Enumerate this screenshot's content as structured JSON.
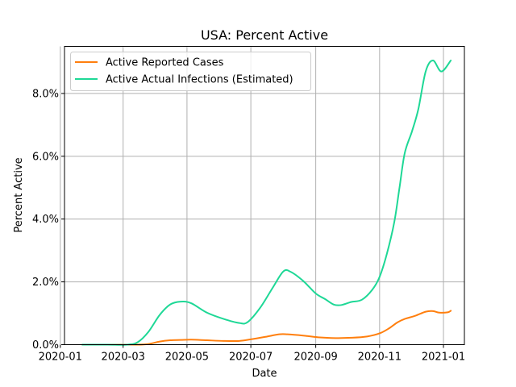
{
  "chart_data": {
    "type": "line",
    "title": "USA: Percent Active",
    "xlabel": "Date",
    "ylabel": "Percent Active",
    "grid": true,
    "legend_position": "top-left",
    "x_range": [
      "2020-01-05",
      "2021-01-21"
    ],
    "ylim": [
      0,
      0.095
    ],
    "x_ticks": [
      {
        "date": "2020-01-01",
        "label": "2020-01"
      },
      {
        "date": "2020-03-01",
        "label": "2020-03"
      },
      {
        "date": "2020-05-01",
        "label": "2020-05"
      },
      {
        "date": "2020-07-01",
        "label": "2020-07"
      },
      {
        "date": "2020-09-01",
        "label": "2020-09"
      },
      {
        "date": "2020-11-01",
        "label": "2020-11"
      },
      {
        "date": "2021-01-01",
        "label": "2021-01"
      }
    ],
    "y_ticks": [
      {
        "value": 0.0,
        "label": "0.0%"
      },
      {
        "value": 0.02,
        "label": "2.0%"
      },
      {
        "value": 0.04,
        "label": "4.0%"
      },
      {
        "value": 0.06,
        "label": "6.0%"
      },
      {
        "value": 0.08,
        "label": "8.0%"
      }
    ],
    "series": [
      {
        "name": "Active Reported Cases",
        "color": "#ff7f0e",
        "points": [
          [
            "2020-01-22",
            0.0
          ],
          [
            "2020-02-15",
            0.0
          ],
          [
            "2020-03-15",
            0.0
          ],
          [
            "2020-03-25",
            0.0002
          ],
          [
            "2020-04-05",
            0.001
          ],
          [
            "2020-04-15",
            0.0014
          ],
          [
            "2020-04-25",
            0.0015
          ],
          [
            "2020-05-05",
            0.0016
          ],
          [
            "2020-05-20",
            0.0014
          ],
          [
            "2020-06-05",
            0.0012
          ],
          [
            "2020-06-20",
            0.0012
          ],
          [
            "2020-07-01",
            0.0017
          ],
          [
            "2020-07-15",
            0.0025
          ],
          [
            "2020-07-28",
            0.0033
          ],
          [
            "2020-08-05",
            0.0033
          ],
          [
            "2020-08-20",
            0.0029
          ],
          [
            "2020-09-05",
            0.0023
          ],
          [
            "2020-09-20",
            0.0021
          ],
          [
            "2020-10-05",
            0.0022
          ],
          [
            "2020-10-20",
            0.0026
          ],
          [
            "2020-11-01",
            0.0036
          ],
          [
            "2020-11-10",
            0.0052
          ],
          [
            "2020-11-18",
            0.0071
          ],
          [
            "2020-11-25",
            0.0082
          ],
          [
            "2020-12-05",
            0.0092
          ],
          [
            "2020-12-15",
            0.0105
          ],
          [
            "2020-12-22",
            0.0107
          ],
          [
            "2020-12-28",
            0.0102
          ],
          [
            "2021-01-05",
            0.0103
          ],
          [
            "2021-01-08",
            0.0108
          ]
        ]
      },
      {
        "name": "Active Actual Infections (Estimated)",
        "color": "#1ed896",
        "points": [
          [
            "2020-01-22",
            0.0
          ],
          [
            "2020-02-15",
            0.0
          ],
          [
            "2020-03-05",
            0.0
          ],
          [
            "2020-03-15",
            0.0008
          ],
          [
            "2020-03-25",
            0.004
          ],
          [
            "2020-04-05",
            0.0095
          ],
          [
            "2020-04-15",
            0.0128
          ],
          [
            "2020-04-25",
            0.0137
          ],
          [
            "2020-05-05",
            0.0132
          ],
          [
            "2020-05-20",
            0.0102
          ],
          [
            "2020-06-05",
            0.0082
          ],
          [
            "2020-06-20",
            0.0069
          ],
          [
            "2020-06-28",
            0.0072
          ],
          [
            "2020-07-10",
            0.0118
          ],
          [
            "2020-07-22",
            0.0182
          ],
          [
            "2020-08-01",
            0.0233
          ],
          [
            "2020-08-08",
            0.0232
          ],
          [
            "2020-08-20",
            0.0203
          ],
          [
            "2020-09-01",
            0.0163
          ],
          [
            "2020-09-10",
            0.0145
          ],
          [
            "2020-09-18",
            0.0128
          ],
          [
            "2020-09-25",
            0.0126
          ],
          [
            "2020-10-05",
            0.0136
          ],
          [
            "2020-10-15",
            0.0143
          ],
          [
            "2020-10-25",
            0.0175
          ],
          [
            "2020-11-01",
            0.0216
          ],
          [
            "2020-11-08",
            0.029
          ],
          [
            "2020-11-15",
            0.039
          ],
          [
            "2020-11-20",
            0.05
          ],
          [
            "2020-11-25",
            0.061
          ],
          [
            "2020-12-02",
            0.068
          ],
          [
            "2020-12-08",
            0.075
          ],
          [
            "2020-12-15",
            0.087
          ],
          [
            "2020-12-22",
            0.0905
          ],
          [
            "2020-12-30",
            0.087
          ],
          [
            "2021-01-08",
            0.0905
          ]
        ]
      }
    ]
  }
}
